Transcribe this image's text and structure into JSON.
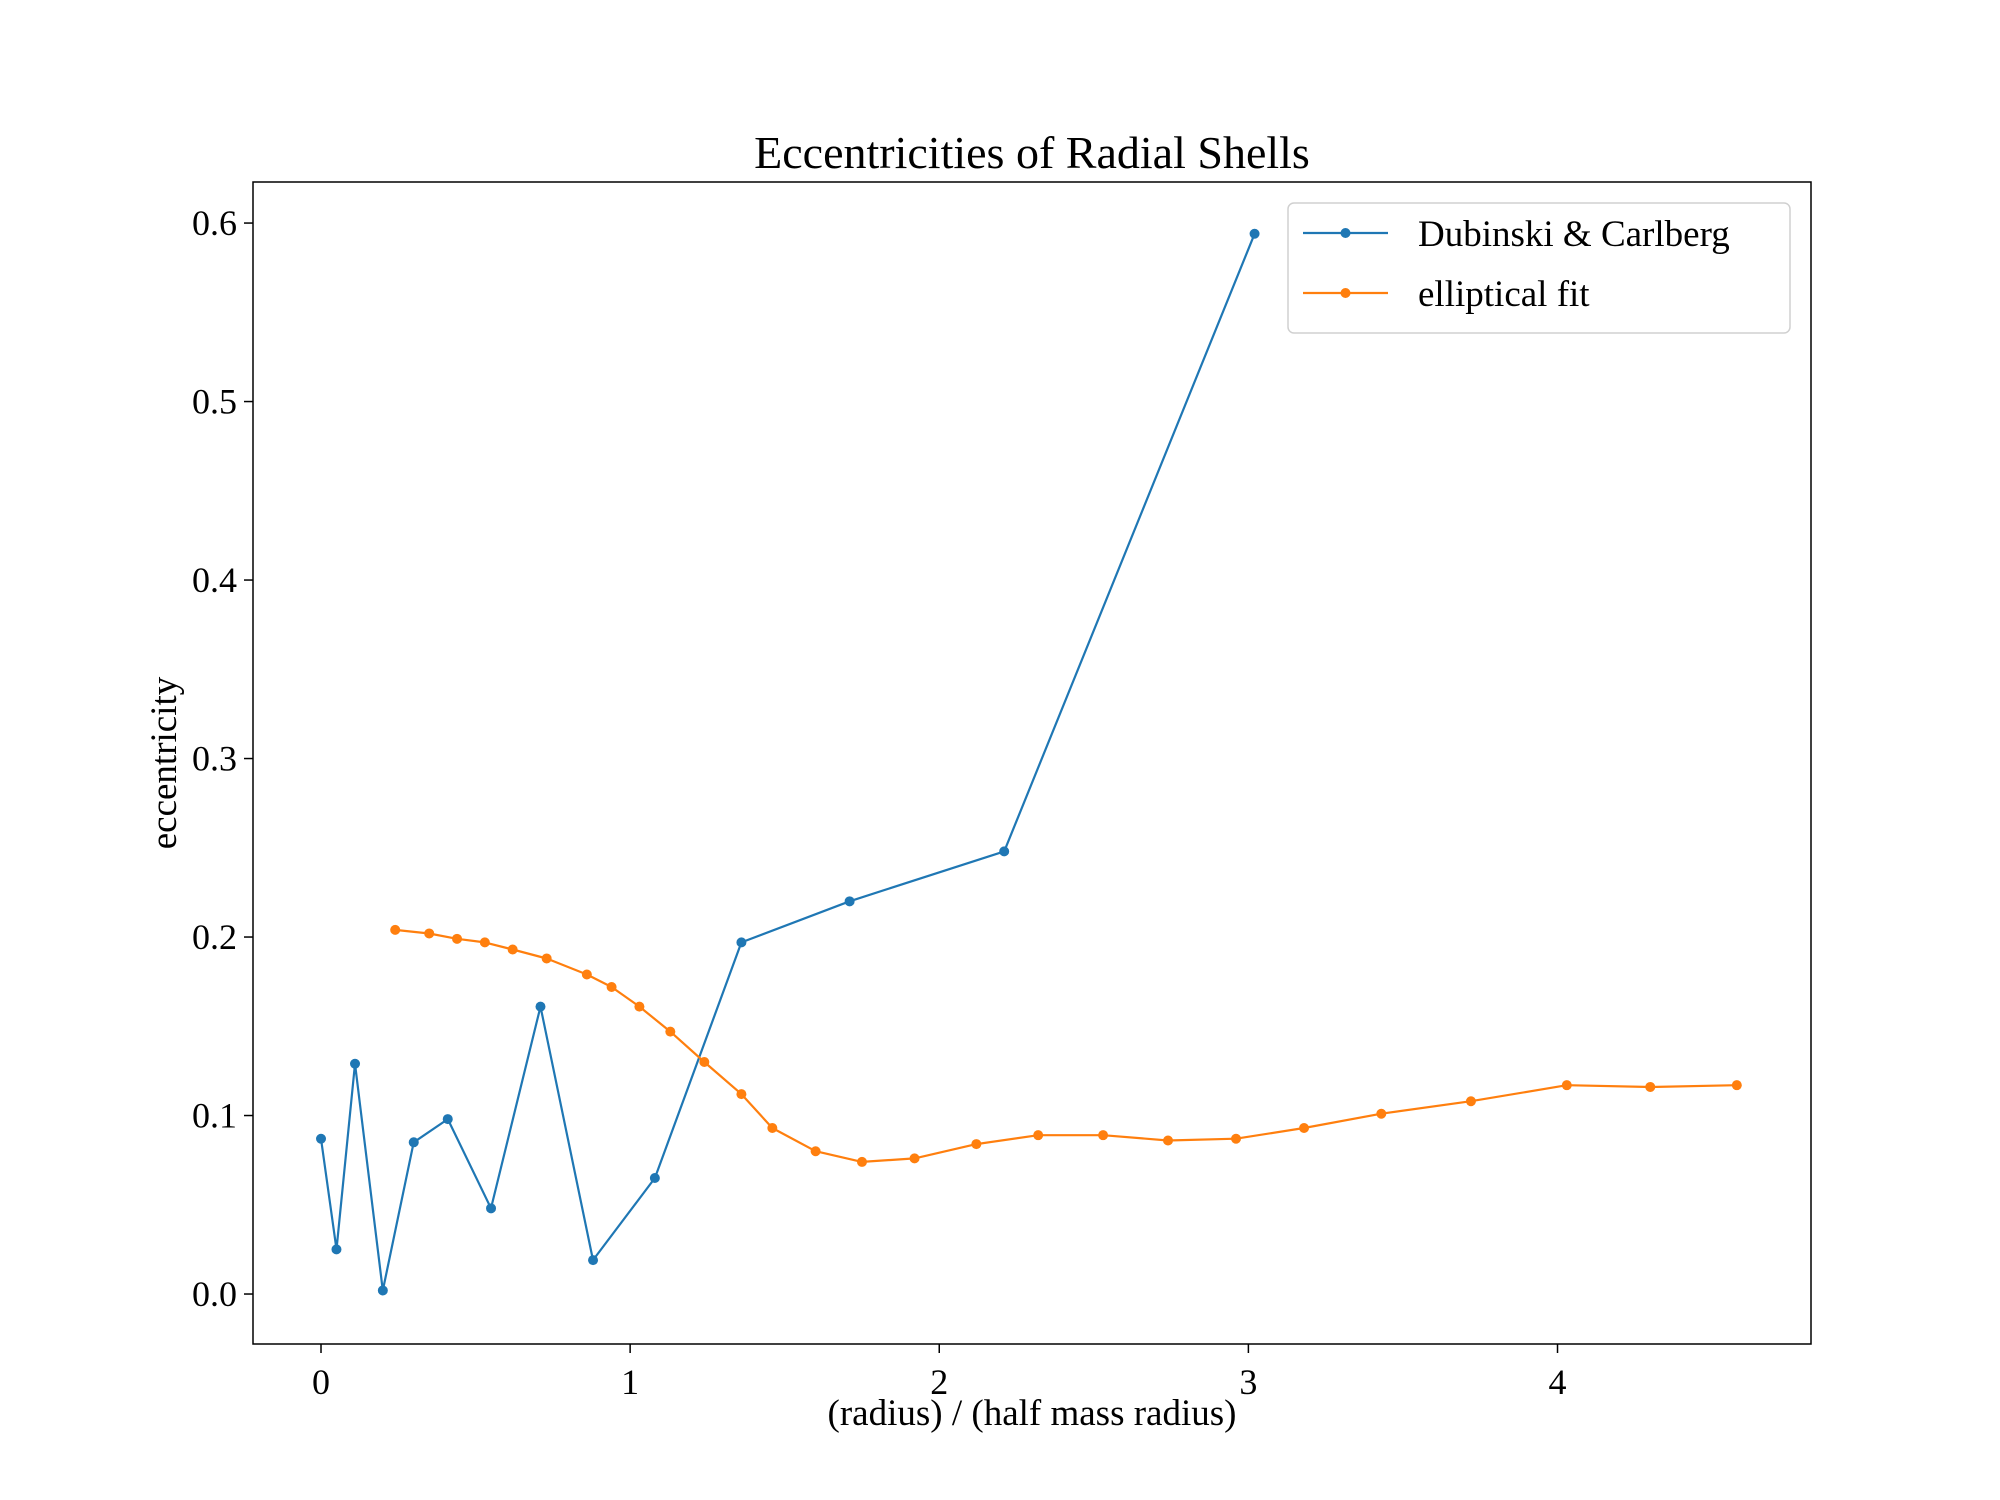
{
  "chart_data": {
    "type": "line",
    "title": "Eccentricities of Radial Shells",
    "xlabel": "(radius) / (half mass radius)",
    "ylabel": "eccentricity",
    "xlim": [
      -0.22,
      4.82
    ],
    "ylim": [
      -0.028,
      0.623
    ],
    "xticks": [
      0,
      1,
      2,
      3,
      4
    ],
    "yticks": [
      0.0,
      0.1,
      0.2,
      0.3,
      0.4,
      0.5,
      0.6
    ],
    "xtick_labels": [
      "0",
      "1",
      "2",
      "3",
      "4"
    ],
    "ytick_labels": [
      "0.0",
      "0.1",
      "0.2",
      "0.3",
      "0.4",
      "0.5",
      "0.6"
    ],
    "grid": false,
    "legend_position": "top-right",
    "series": [
      {
        "name": "Dubinski & Carlberg",
        "color": "#1f77b4",
        "marker": "circle",
        "x": [
          0.0,
          0.05,
          0.11,
          0.2,
          0.3,
          0.41,
          0.55,
          0.71,
          0.88,
          1.08,
          1.36,
          1.71,
          2.21,
          3.02
        ],
        "y": [
          0.087,
          0.025,
          0.129,
          0.002,
          0.085,
          0.098,
          0.048,
          0.161,
          0.019,
          0.065,
          0.197,
          0.22,
          0.248,
          0.594
        ]
      },
      {
        "name": "elliptical fit",
        "color": "#ff7f0e",
        "marker": "circle",
        "x": [
          0.24,
          0.35,
          0.44,
          0.53,
          0.62,
          0.73,
          0.86,
          0.94,
          1.03,
          1.13,
          1.24,
          1.36,
          1.46,
          1.6,
          1.75,
          1.92,
          2.12,
          2.32,
          2.53,
          2.74,
          2.96,
          3.18,
          3.43,
          3.72,
          4.03,
          4.3,
          4.58
        ],
        "y": [
          0.204,
          0.202,
          0.199,
          0.197,
          0.193,
          0.188,
          0.179,
          0.172,
          0.161,
          0.147,
          0.13,
          0.112,
          0.093,
          0.08,
          0.074,
          0.076,
          0.084,
          0.089,
          0.089,
          0.086,
          0.087,
          0.093,
          0.101,
          0.108,
          0.117,
          0.116,
          0.117
        ]
      }
    ]
  }
}
